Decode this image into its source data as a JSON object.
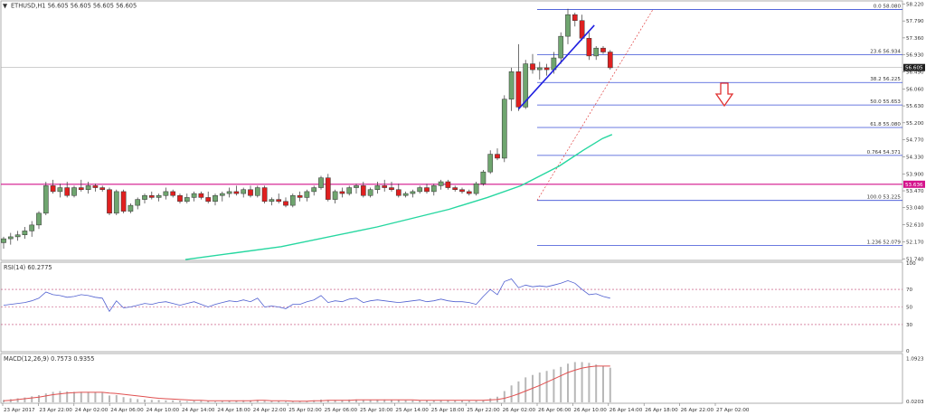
{
  "header": {
    "symbol_line": "ETHUSD,H1  56.605 56.605 56.605 56.605",
    "rsi_label": "RSI(14) 60.2775",
    "macd_label": "MACD(12,26,9) 0.7573 0.9355"
  },
  "colors": {
    "up": "#6fa56f",
    "down": "#e02020",
    "ema": "#26d7a0",
    "fib": "#3a4fd6",
    "resistance": "#d4148c",
    "trendline": "#2020e0",
    "rsi": "#5060d0",
    "macd_signal": "#e05050",
    "macd_hist": "#b8b8b8",
    "arrow": "#e03030"
  },
  "chart_data": [
    {
      "type": "candlestick",
      "name": "ETHUSD H1",
      "price_axis": {
        "ticks": [
          "58.220",
          "57.790",
          "57.360",
          "56.930",
          "56.490",
          "56.060",
          "55.630",
          "55.200",
          "54.770",
          "54.330",
          "53.900",
          "53.470",
          "53.040",
          "52.610",
          "52.170",
          "51.740"
        ],
        "range": [
          51.7,
          58.3
        ]
      },
      "current_price": "56.605",
      "support_level": "53.636",
      "x_ticks": [
        "23 Apr 2017",
        "23 Apr 22:00",
        "24 Apr 02:00",
        "24 Apr 06:00",
        "24 Apr 10:00",
        "24 Apr 14:00",
        "24 Apr 18:00",
        "24 Apr 22:00",
        "25 Apr 02:00",
        "25 Apr 06:00",
        "25 Apr 10:00",
        "25 Apr 14:00",
        "25 Apr 18:00",
        "25 Apr 22:00",
        "26 Apr 02:00",
        "26 Apr 06:00",
        "26 Apr 10:00",
        "26 Apr 14:00",
        "26 Apr 18:00",
        "26 Apr 22:00",
        "27 Apr 02:00"
      ],
      "fibonacci": [
        {
          "label": "0.0",
          "value": "58.080"
        },
        {
          "label": "23.6",
          "value": "56.934"
        },
        {
          "label": "38.2",
          "value": "56.225"
        },
        {
          "label": "50.0",
          "value": "55.653"
        },
        {
          "label": "61.8",
          "value": "55.080"
        },
        {
          "label": "0.764",
          "value": "54.371"
        },
        {
          "label": "100.0",
          "value": "53.225"
        },
        {
          "label": "1.236",
          "value": "52.079"
        }
      ],
      "candles_ohlc": [
        [
          52.15,
          52.3,
          52.0,
          52.25
        ],
        [
          52.25,
          52.4,
          52.1,
          52.3
        ],
        [
          52.3,
          52.45,
          52.2,
          52.35
        ],
        [
          52.35,
          52.55,
          52.25,
          52.45
        ],
        [
          52.45,
          52.7,
          52.3,
          52.6
        ],
        [
          52.6,
          52.95,
          52.5,
          52.9
        ],
        [
          52.9,
          53.7,
          52.85,
          53.6
        ],
        [
          53.6,
          53.75,
          53.4,
          53.45
        ],
        [
          53.45,
          53.65,
          53.3,
          53.55
        ],
        [
          53.55,
          53.7,
          53.3,
          53.35
        ],
        [
          53.35,
          53.6,
          53.3,
          53.55
        ],
        [
          53.55,
          53.75,
          53.45,
          53.5
        ],
        [
          53.5,
          53.7,
          53.4,
          53.6
        ],
        [
          53.6,
          53.65,
          53.45,
          53.55
        ],
        [
          53.55,
          53.6,
          53.45,
          53.5
        ],
        [
          53.5,
          53.55,
          52.85,
          52.9
        ],
        [
          52.9,
          53.5,
          52.85,
          53.45
        ],
        [
          53.45,
          53.5,
          52.9,
          52.95
        ],
        [
          52.95,
          53.15,
          52.9,
          53.1
        ],
        [
          53.1,
          53.3,
          53.0,
          53.25
        ],
        [
          53.25,
          53.4,
          53.15,
          53.35
        ],
        [
          53.35,
          53.45,
          53.25,
          53.3
        ],
        [
          53.3,
          53.4,
          53.2,
          53.35
        ],
        [
          53.35,
          53.55,
          53.25,
          53.45
        ],
        [
          53.45,
          53.5,
          53.3,
          53.35
        ],
        [
          53.35,
          53.4,
          53.15,
          53.2
        ],
        [
          53.2,
          53.4,
          53.15,
          53.3
        ],
        [
          53.3,
          53.45,
          53.2,
          53.4
        ],
        [
          53.4,
          53.45,
          53.25,
          53.3
        ],
        [
          53.3,
          53.45,
          53.15,
          53.2
        ],
        [
          53.2,
          53.4,
          53.1,
          53.35
        ],
        [
          53.35,
          53.45,
          53.2,
          53.4
        ],
        [
          53.4,
          53.55,
          53.3,
          53.45
        ],
        [
          53.45,
          53.6,
          53.35,
          53.4
        ],
        [
          53.4,
          53.55,
          53.3,
          53.5
        ],
        [
          53.5,
          53.6,
          53.3,
          53.35
        ],
        [
          53.35,
          53.6,
          53.3,
          53.55
        ],
        [
          53.55,
          53.6,
          53.15,
          53.2
        ],
        [
          53.2,
          53.3,
          53.1,
          53.25
        ],
        [
          53.25,
          53.4,
          53.15,
          53.2
        ],
        [
          53.2,
          53.3,
          53.05,
          53.1
        ],
        [
          53.1,
          53.4,
          53.05,
          53.35
        ],
        [
          53.35,
          53.45,
          53.2,
          53.3
        ],
        [
          53.3,
          53.5,
          53.2,
          53.45
        ],
        [
          53.45,
          53.6,
          53.35,
          53.55
        ],
        [
          53.55,
          53.85,
          53.5,
          53.8
        ],
        [
          53.8,
          53.9,
          53.2,
          53.25
        ],
        [
          53.25,
          53.5,
          53.15,
          53.45
        ],
        [
          53.45,
          53.55,
          53.3,
          53.4
        ],
        [
          53.4,
          53.6,
          53.35,
          53.55
        ],
        [
          53.55,
          53.65,
          53.4,
          53.6
        ],
        [
          53.6,
          53.7,
          53.3,
          53.35
        ],
        [
          53.35,
          53.55,
          53.3,
          53.5
        ],
        [
          53.5,
          53.7,
          53.4,
          53.6
        ],
        [
          53.6,
          53.75,
          53.45,
          53.55
        ],
        [
          53.55,
          53.7,
          53.45,
          53.5
        ],
        [
          53.5,
          53.65,
          53.3,
          53.35
        ],
        [
          53.35,
          53.45,
          53.3,
          53.4
        ],
        [
          53.4,
          53.5,
          53.3,
          53.45
        ],
        [
          53.45,
          53.6,
          53.4,
          53.55
        ],
        [
          53.55,
          53.65,
          53.4,
          53.45
        ],
        [
          53.45,
          53.65,
          53.35,
          53.6
        ],
        [
          53.6,
          53.75,
          53.5,
          53.7
        ],
        [
          53.7,
          53.75,
          53.5,
          53.55
        ],
        [
          53.55,
          53.6,
          53.45,
          53.5
        ],
        [
          53.5,
          53.55,
          53.4,
          53.45
        ],
        [
          53.45,
          53.5,
          53.35,
          53.4
        ],
        [
          53.4,
          53.7,
          53.35,
          53.65
        ],
        [
          53.65,
          54.0,
          53.6,
          53.95
        ],
        [
          53.95,
          54.5,
          53.9,
          54.4
        ],
        [
          54.4,
          54.55,
          54.25,
          54.3
        ],
        [
          54.3,
          55.9,
          54.2,
          55.8
        ],
        [
          55.8,
          56.6,
          55.5,
          56.5
        ],
        [
          56.5,
          57.2,
          55.5,
          55.6
        ],
        [
          55.6,
          56.8,
          55.55,
          56.7
        ],
        [
          56.7,
          56.95,
          56.45,
          56.55
        ],
        [
          56.55,
          56.75,
          56.3,
          56.6
        ],
        [
          56.6,
          56.7,
          56.4,
          56.55
        ],
        [
          56.55,
          57.0,
          56.45,
          56.85
        ],
        [
          56.85,
          57.5,
          56.7,
          57.4
        ],
        [
          57.4,
          58.1,
          57.2,
          57.95
        ],
        [
          57.95,
          58.0,
          57.65,
          57.8
        ],
        [
          57.8,
          57.95,
          57.3,
          57.35
        ],
        [
          57.35,
          57.5,
          56.8,
          56.9
        ],
        [
          56.9,
          57.15,
          56.8,
          57.1
        ],
        [
          57.1,
          57.15,
          56.95,
          57.0
        ],
        [
          57.0,
          57.05,
          56.55,
          56.6
        ]
      ],
      "ema": [
        [
          0,
          51.72
        ],
        [
          20,
          52.05
        ],
        [
          40,
          52.55
        ],
        [
          55,
          53.0
        ],
        [
          63,
          53.3
        ],
        [
          70,
          53.6
        ],
        [
          78,
          54.1
        ],
        [
          83,
          54.5
        ],
        [
          87,
          54.8
        ],
        [
          89,
          54.9
        ]
      ]
    },
    {
      "type": "line",
      "name": "RSI(14)",
      "ylim": [
        0,
        100
      ],
      "ticks": [
        "100",
        "70",
        "50",
        "30",
        "0"
      ],
      "values": [
        52,
        53,
        54,
        55,
        57,
        60,
        67,
        64,
        63,
        61,
        62,
        64,
        63,
        61,
        60,
        45,
        57,
        49,
        50,
        52,
        54,
        53,
        55,
        56,
        54,
        52,
        54,
        56,
        53,
        50,
        53,
        55,
        57,
        56,
        58,
        56,
        60,
        50,
        51,
        50,
        48,
        53,
        53,
        56,
        58,
        63,
        55,
        57,
        56,
        59,
        60,
        55,
        57,
        58,
        57,
        56,
        55,
        56,
        57,
        58,
        56,
        57,
        59,
        57,
        56,
        56,
        55,
        53,
        62,
        70,
        64,
        79,
        82,
        72,
        75,
        73,
        74,
        73,
        75,
        77,
        80,
        77,
        70,
        64,
        65,
        62,
        60
      ]
    },
    {
      "type": "bar+line",
      "name": "MACD(12,26,9)",
      "ticks": [
        "1.0923",
        "0.0203"
      ],
      "ylim": [
        0.0,
        1.1
      ],
      "histogram": [
        0.06,
        0.08,
        0.1,
        0.12,
        0.15,
        0.18,
        0.22,
        0.26,
        0.28,
        0.27,
        0.26,
        0.26,
        0.26,
        0.25,
        0.24,
        0.17,
        0.18,
        0.13,
        0.1,
        0.08,
        0.07,
        0.06,
        0.06,
        0.05,
        0.05,
        0.04,
        0.03,
        0.04,
        0.04,
        0.03,
        0.02,
        0.03,
        0.04,
        0.04,
        0.05,
        0.05,
        0.06,
        0.04,
        0.03,
        0.03,
        0.02,
        0.02,
        0.03,
        0.03,
        0.05,
        0.07,
        0.06,
        0.06,
        0.06,
        0.07,
        0.07,
        0.06,
        0.06,
        0.06,
        0.07,
        0.06,
        0.06,
        0.05,
        0.05,
        0.05,
        0.05,
        0.05,
        0.06,
        0.06,
        0.05,
        0.05,
        0.04,
        0.04,
        0.06,
        0.1,
        0.14,
        0.28,
        0.42,
        0.52,
        0.62,
        0.68,
        0.74,
        0.78,
        0.82,
        0.88,
        0.96,
        1.0,
        1.0,
        0.98,
        0.94,
        0.9,
        0.86
      ],
      "signal": [
        0.04,
        0.05,
        0.07,
        0.09,
        0.11,
        0.13,
        0.16,
        0.19,
        0.21,
        0.23,
        0.24,
        0.25,
        0.25,
        0.25,
        0.25,
        0.23,
        0.22,
        0.2,
        0.18,
        0.16,
        0.14,
        0.12,
        0.1,
        0.09,
        0.08,
        0.07,
        0.06,
        0.05,
        0.05,
        0.04,
        0.04,
        0.04,
        0.04,
        0.04,
        0.04,
        0.04,
        0.05,
        0.05,
        0.04,
        0.04,
        0.04,
        0.03,
        0.03,
        0.03,
        0.04,
        0.04,
        0.05,
        0.05,
        0.05,
        0.05,
        0.06,
        0.06,
        0.06,
        0.06,
        0.06,
        0.06,
        0.06,
        0.06,
        0.06,
        0.05,
        0.05,
        0.05,
        0.05,
        0.05,
        0.05,
        0.05,
        0.05,
        0.05,
        0.05,
        0.06,
        0.07,
        0.1,
        0.15,
        0.21,
        0.28,
        0.35,
        0.42,
        0.5,
        0.58,
        0.66,
        0.74,
        0.8,
        0.85,
        0.88,
        0.9,
        0.9,
        0.9
      ]
    }
  ]
}
